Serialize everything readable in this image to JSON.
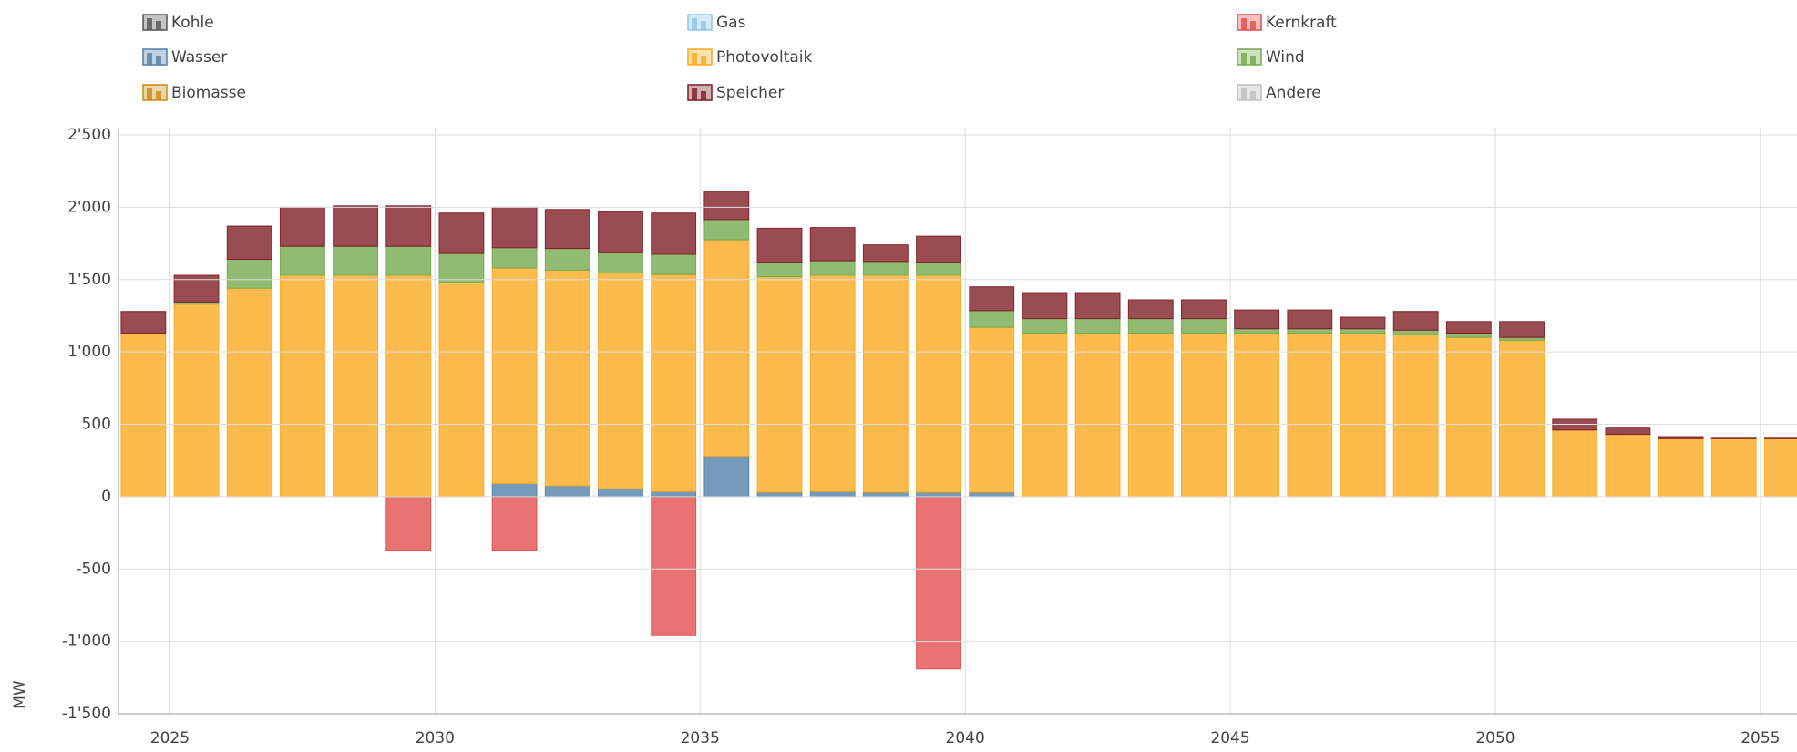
{
  "chart_data": {
    "type": "bar",
    "stacked": true,
    "y_label": "MW",
    "x": [
      2024.5,
      2025.5,
      2026.5,
      2027.5,
      2028.5,
      2029.5,
      2030.5,
      2031.5,
      2032.5,
      2033.5,
      2034.5,
      2035.5,
      2036.5,
      2037.5,
      2038.5,
      2039.5,
      2040.5,
      2041.5,
      2042.5,
      2043.5,
      2044.5,
      2045.5,
      2046.5,
      2047.5,
      2048.5,
      2049.5,
      2050.5,
      2051.5,
      2052.5,
      2053.5,
      2054.5,
      2055.5
    ],
    "xlim": [
      2024.03,
      2055.69
    ],
    "xticks": [
      2025,
      2030,
      2035,
      2040,
      2045,
      2050,
      2055
    ],
    "ylim": [
      -1500,
      2500
    ],
    "yticks": [
      {
        "value": -1500,
        "label": "-1'500"
      },
      {
        "value": -1000,
        "label": "-1'000"
      },
      -500,
      0,
      500,
      {
        "value": 1000,
        "label": "1'000"
      },
      {
        "value": 1500,
        "label": "1'500"
      },
      {
        "value": 2000,
        "label": "2'000"
      },
      {
        "value": 2500,
        "label": "2'500"
      }
    ],
    "grid": true,
    "legend": "top",
    "series": [
      {
        "name": "Kohle",
        "color": "#555555",
        "values": [
          0,
          0,
          0,
          0,
          0,
          0,
          0,
          0,
          0,
          0,
          0,
          0,
          0,
          0,
          0,
          0,
          0,
          0,
          0,
          0,
          0,
          0,
          0,
          0,
          0,
          0,
          0,
          0,
          0,
          0,
          0,
          0
        ]
      },
      {
        "name": "Gas",
        "color": "#8ec3ee",
        "values": [
          0,
          0,
          0,
          0,
          0,
          0,
          0,
          0,
          0,
          0,
          0,
          0,
          0,
          0,
          0,
          0,
          0,
          0,
          0,
          0,
          0,
          0,
          0,
          0,
          0,
          0,
          0,
          0,
          0,
          0,
          0,
          0
        ]
      },
      {
        "name": "Kernkraft",
        "color": "#e34a4a",
        "values": [
          0,
          0,
          0,
          0,
          0,
          -370,
          0,
          -370,
          0,
          0,
          -960,
          0,
          0,
          0,
          0,
          -1190,
          0,
          0,
          0,
          0,
          0,
          0,
          0,
          0,
          0,
          0,
          0,
          0,
          0,
          0,
          0,
          0
        ]
      },
      {
        "name": "Wasser",
        "color": "#4f7fa6",
        "values": [
          0,
          0,
          0,
          0,
          0,
          0,
          0,
          90,
          75,
          55,
          35,
          280,
          30,
          35,
          30,
          30,
          30,
          0,
          0,
          0,
          0,
          0,
          0,
          0,
          0,
          0,
          0,
          0,
          0,
          0,
          0,
          0
        ]
      },
      {
        "name": "Photovoltaik",
        "color": "#fca81c",
        "values": [
          1130,
          1330,
          1440,
          1530,
          1530,
          1530,
          1480,
          1490,
          1490,
          1490,
          1500,
          1495,
          1490,
          1495,
          1500,
          1500,
          1140,
          1130,
          1130,
          1130,
          1130,
          1130,
          1130,
          1130,
          1120,
          1100,
          1080,
          460,
          430,
          400,
          400,
          400
        ]
      },
      {
        "name": "Wind",
        "color": "#72a84a",
        "values": [
          0,
          15,
          200,
          200,
          200,
          200,
          200,
          140,
          150,
          140,
          140,
          140,
          100,
          100,
          95,
          90,
          115,
          100,
          100,
          100,
          100,
          30,
          30,
          30,
          30,
          30,
          20,
          0,
          0,
          0,
          0,
          0
        ]
      },
      {
        "name": "Biomasse",
        "color": "#cc8a10",
        "values": [
          0,
          0,
          0,
          0,
          0,
          0,
          0,
          0,
          0,
          0,
          0,
          0,
          0,
          0,
          0,
          0,
          0,
          0,
          0,
          0,
          0,
          0,
          0,
          0,
          0,
          0,
          0,
          0,
          0,
          0,
          0,
          0
        ]
      },
      {
        "name": "Speicher",
        "color": "#7d1a22",
        "values": [
          150,
          185,
          230,
          270,
          280,
          280,
          280,
          280,
          270,
          285,
          285,
          195,
          235,
          230,
          115,
          180,
          165,
          180,
          180,
          130,
          130,
          130,
          130,
          80,
          130,
          80,
          110,
          75,
          50,
          15,
          10,
          10
        ]
      },
      {
        "name": "Andere",
        "color": "#bdbdbd",
        "values": [
          0,
          0,
          0,
          0,
          0,
          0,
          0,
          0,
          0,
          0,
          0,
          0,
          0,
          0,
          0,
          0,
          0,
          0,
          0,
          0,
          0,
          0,
          0,
          0,
          0,
          0,
          0,
          0,
          0,
          0,
          0,
          0
        ]
      }
    ]
  }
}
